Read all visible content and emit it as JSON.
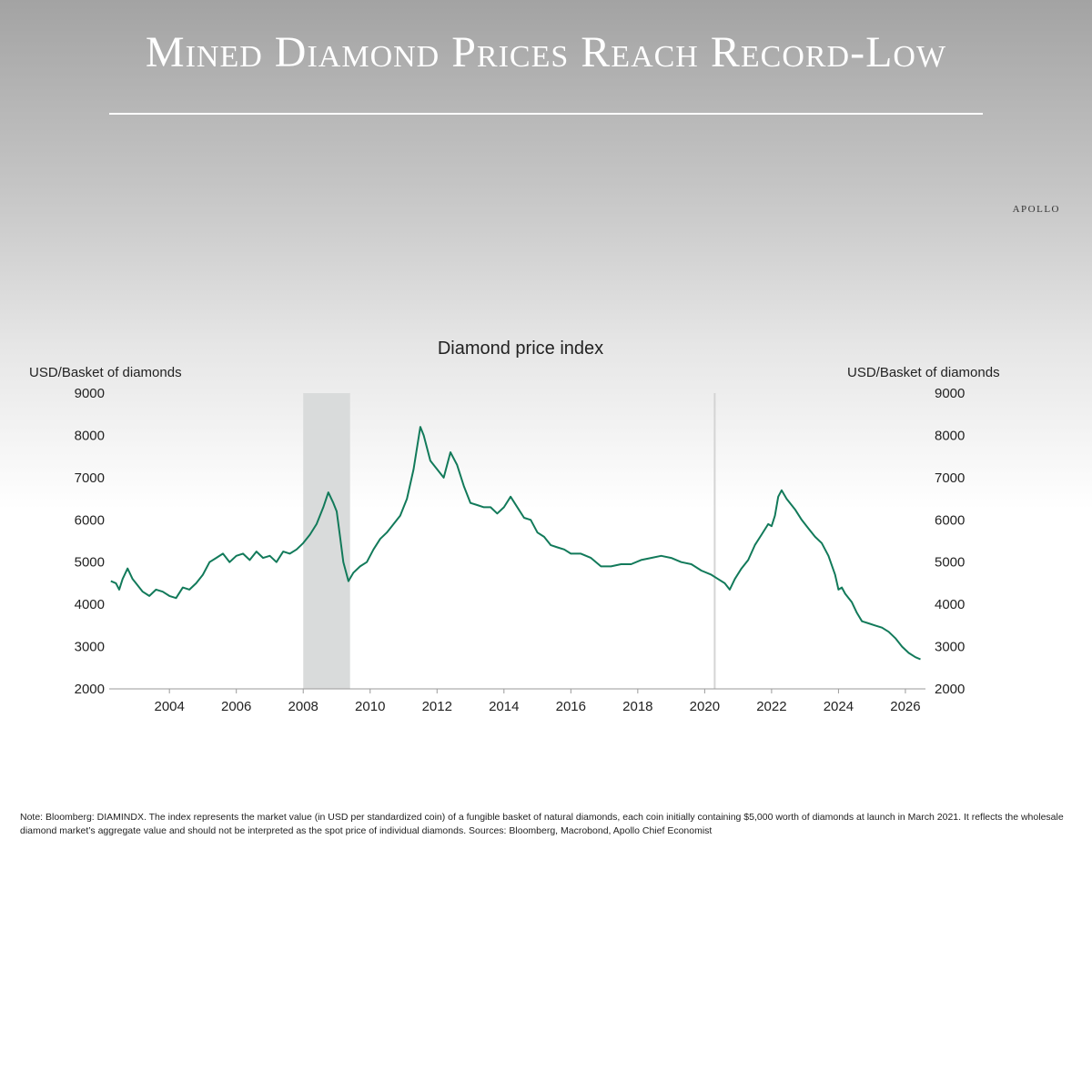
{
  "header": {
    "title": "Mined Diamond Prices Reach Record-Low",
    "brand": "APOLLO"
  },
  "colors": {
    "line": "#127a5a",
    "recession_band": "#d9dbdb",
    "vline": "#d4d4d4",
    "text": "#222222"
  },
  "chart_data": {
    "type": "line",
    "title": "Diamond price index",
    "ylabel_left": "USD/Basket of diamonds",
    "ylabel_right": "USD/Basket of diamonds",
    "xlim": [
      2002.2,
      2026.6
    ],
    "ylim": [
      2000,
      9000
    ],
    "x_ticks": [
      2004,
      2006,
      2008,
      2010,
      2012,
      2014,
      2016,
      2018,
      2020,
      2022,
      2024,
      2026
    ],
    "y_ticks": [
      2000,
      3000,
      4000,
      5000,
      6000,
      7000,
      8000,
      9000
    ],
    "shaded_periods": [
      [
        2008.0,
        2009.4
      ]
    ],
    "vertical_markers": [
      2020.3
    ],
    "series": [
      {
        "values": [
          [
            2002.25,
            4550
          ],
          [
            2002.4,
            4500
          ],
          [
            2002.5,
            4350
          ],
          [
            2002.6,
            4600
          ],
          [
            2002.75,
            4850
          ],
          [
            2002.9,
            4600
          ],
          [
            2003.0,
            4500
          ],
          [
            2003.2,
            4300
          ],
          [
            2003.4,
            4200
          ],
          [
            2003.6,
            4350
          ],
          [
            2003.8,
            4300
          ],
          [
            2004.0,
            4200
          ],
          [
            2004.2,
            4150
          ],
          [
            2004.4,
            4400
          ],
          [
            2004.6,
            4350
          ],
          [
            2004.8,
            4500
          ],
          [
            2005.0,
            4700
          ],
          [
            2005.2,
            5000
          ],
          [
            2005.4,
            5100
          ],
          [
            2005.6,
            5200
          ],
          [
            2005.8,
            5000
          ],
          [
            2006.0,
            5150
          ],
          [
            2006.2,
            5200
          ],
          [
            2006.4,
            5050
          ],
          [
            2006.6,
            5250
          ],
          [
            2006.8,
            5100
          ],
          [
            2007.0,
            5150
          ],
          [
            2007.2,
            5000
          ],
          [
            2007.4,
            5250
          ],
          [
            2007.6,
            5200
          ],
          [
            2007.8,
            5300
          ],
          [
            2008.0,
            5450
          ],
          [
            2008.2,
            5650
          ],
          [
            2008.4,
            5900
          ],
          [
            2008.6,
            6300
          ],
          [
            2008.75,
            6650
          ],
          [
            2008.9,
            6400
          ],
          [
            2009.0,
            6200
          ],
          [
            2009.1,
            5600
          ],
          [
            2009.2,
            5000
          ],
          [
            2009.35,
            4550
          ],
          [
            2009.5,
            4750
          ],
          [
            2009.7,
            4900
          ],
          [
            2009.9,
            5000
          ],
          [
            2010.1,
            5300
          ],
          [
            2010.3,
            5550
          ],
          [
            2010.5,
            5700
          ],
          [
            2010.7,
            5900
          ],
          [
            2010.9,
            6100
          ],
          [
            2011.1,
            6500
          ],
          [
            2011.3,
            7200
          ],
          [
            2011.5,
            8200
          ],
          [
            2011.6,
            8000
          ],
          [
            2011.8,
            7400
          ],
          [
            2012.0,
            7200
          ],
          [
            2012.2,
            7000
          ],
          [
            2012.4,
            7600
          ],
          [
            2012.6,
            7300
          ],
          [
            2012.8,
            6800
          ],
          [
            2013.0,
            6400
          ],
          [
            2013.2,
            6350
          ],
          [
            2013.4,
            6300
          ],
          [
            2013.6,
            6300
          ],
          [
            2013.8,
            6150
          ],
          [
            2014.0,
            6300
          ],
          [
            2014.2,
            6550
          ],
          [
            2014.4,
            6300
          ],
          [
            2014.6,
            6050
          ],
          [
            2014.8,
            6000
          ],
          [
            2015.0,
            5700
          ],
          [
            2015.2,
            5600
          ],
          [
            2015.4,
            5400
          ],
          [
            2015.6,
            5350
          ],
          [
            2015.8,
            5300
          ],
          [
            2016.0,
            5200
          ],
          [
            2016.3,
            5200
          ],
          [
            2016.6,
            5100
          ],
          [
            2016.9,
            4900
          ],
          [
            2017.2,
            4900
          ],
          [
            2017.5,
            4950
          ],
          [
            2017.8,
            4950
          ],
          [
            2018.1,
            5050
          ],
          [
            2018.4,
            5100
          ],
          [
            2018.7,
            5150
          ],
          [
            2019.0,
            5100
          ],
          [
            2019.3,
            5000
          ],
          [
            2019.6,
            4950
          ],
          [
            2019.9,
            4800
          ],
          [
            2020.2,
            4700
          ],
          [
            2020.4,
            4600
          ],
          [
            2020.6,
            4500
          ],
          [
            2020.75,
            4350
          ],
          [
            2020.9,
            4600
          ],
          [
            2021.1,
            4850
          ],
          [
            2021.3,
            5050
          ],
          [
            2021.5,
            5400
          ],
          [
            2021.7,
            5650
          ],
          [
            2021.9,
            5900
          ],
          [
            2022.0,
            5850
          ],
          [
            2022.1,
            6100
          ],
          [
            2022.2,
            6550
          ],
          [
            2022.3,
            6700
          ],
          [
            2022.45,
            6500
          ],
          [
            2022.7,
            6250
          ],
          [
            2022.9,
            6000
          ],
          [
            2023.1,
            5800
          ],
          [
            2023.3,
            5600
          ],
          [
            2023.5,
            5450
          ],
          [
            2023.7,
            5150
          ],
          [
            2023.9,
            4700
          ],
          [
            2024.0,
            4350
          ],
          [
            2024.1,
            4400
          ],
          [
            2024.2,
            4250
          ],
          [
            2024.4,
            4050
          ],
          [
            2024.55,
            3800
          ],
          [
            2024.7,
            3600
          ],
          [
            2024.9,
            3550
          ],
          [
            2025.1,
            3500
          ],
          [
            2025.3,
            3450
          ],
          [
            2025.5,
            3350
          ],
          [
            2025.7,
            3200
          ],
          [
            2025.9,
            3000
          ],
          [
            2026.1,
            2850
          ],
          [
            2026.3,
            2750
          ],
          [
            2026.45,
            2700
          ]
        ]
      }
    ]
  },
  "footnote": "Note: Bloomberg: DIAMINDX. The index represents the market value (in USD per standardized coin) of a fungible basket of natural diamonds, each coin initially containing $5,000 worth of diamonds at launch in March 2021. It reflects the wholesale diamond market’s aggregate value and should not be interpreted as the spot price of individual diamonds. Sources: Bloomberg, Macrobond, Apollo Chief Economist"
}
